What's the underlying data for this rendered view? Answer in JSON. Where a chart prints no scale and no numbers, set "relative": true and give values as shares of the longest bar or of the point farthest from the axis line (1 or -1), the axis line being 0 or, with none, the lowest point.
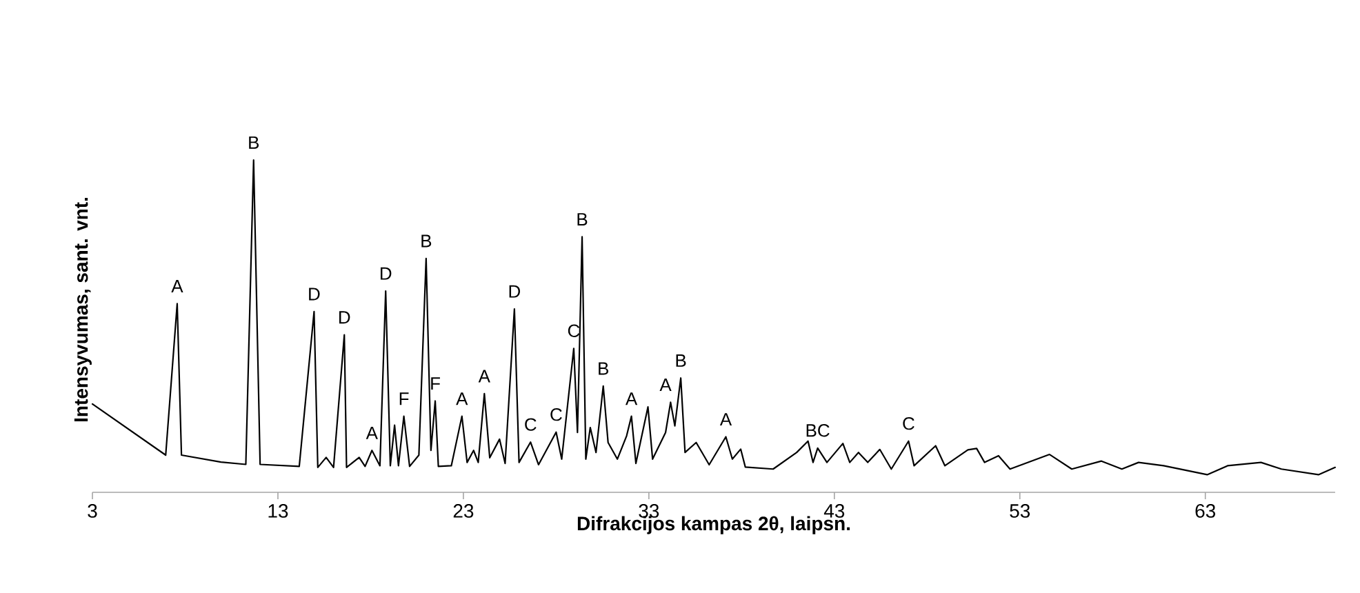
{
  "chart_data": {
    "type": "line",
    "relative": true,
    "xlabel": "Difrakcijos kampas 2θ, laipsn.",
    "ylabel": "Intensyvumas, sant. vnt.",
    "xlim": [
      3,
      70
    ],
    "xticks": [
      3,
      13,
      23,
      33,
      43,
      53,
      63
    ],
    "grid": false,
    "series": [
      {
        "color": "#000000",
        "x": [
          3,
          6.95,
          7.57,
          7.8,
          9.93,
          11.27,
          11.69,
          12.04,
          14.15,
          14.95,
          15.15,
          15.6,
          16.0,
          16.58,
          16.7,
          17.38,
          17.7,
          18.07,
          18.5,
          18.81,
          19.06,
          19.29,
          19.5,
          19.79,
          20.1,
          20.6,
          20.99,
          21.25,
          21.48,
          21.65,
          22.35,
          22.92,
          23.2,
          23.55,
          23.8,
          24.13,
          24.42,
          24.95,
          25.25,
          25.75,
          26.0,
          26.62,
          27.05,
          28.0,
          28.3,
          28.95,
          29.15,
          29.4,
          29.6,
          29.84,
          30.15,
          30.54,
          30.8,
          31.3,
          31.8,
          32.06,
          32.3,
          32.95,
          33.2,
          33.9,
          34.17,
          34.4,
          34.72,
          34.95,
          35.55,
          36.25,
          37.15,
          37.5,
          37.95,
          38.2,
          39.7,
          40.97,
          41.58,
          41.85,
          42.1,
          42.6,
          43.46,
          43.83,
          44.3,
          44.8,
          45.45,
          46.07,
          47.0,
          47.3,
          48.46,
          48.96,
          50.2,
          50.67,
          51.1,
          51.85,
          52.47,
          54.6,
          55.8,
          57.4,
          58.5,
          59.4,
          60.75,
          63.1,
          64.2,
          66.0,
          67.1,
          69.1,
          70.0
        ],
        "values": [
          0.266,
          0.112,
          0.568,
          0.112,
          0.091,
          0.084,
          1,
          0.084,
          0.078,
          0.544,
          0.075,
          0.105,
          0.075,
          0.474,
          0.075,
          0.105,
          0.078,
          0.126,
          0.08,
          0.606,
          0.08,
          0.202,
          0.08,
          0.229,
          0.078,
          0.112,
          0.704,
          0.126,
          0.275,
          0.078,
          0.08,
          0.229,
          0.09,
          0.126,
          0.09,
          0.297,
          0.104,
          0.16,
          0.087,
          0.552,
          0.09,
          0.151,
          0.083,
          0.181,
          0.1,
          0.433,
          0.18,
          0.769,
          0.1,
          0.195,
          0.12,
          0.32,
          0.15,
          0.1,
          0.17,
          0.229,
          0.087,
          0.257,
          0.1,
          0.18,
          0.271,
          0.2,
          0.344,
          0.12,
          0.15,
          0.083,
          0.167,
          0.1,
          0.13,
          0.076,
          0.07,
          0.12,
          0.154,
          0.09,
          0.133,
          0.09,
          0.147,
          0.09,
          0.12,
          0.09,
          0.129,
          0.07,
          0.154,
          0.08,
          0.14,
          0.08,
          0.128,
          0.132,
          0.09,
          0.11,
          0.07,
          0.114,
          0.07,
          0.094,
          0.07,
          0.09,
          0.08,
          0.053,
          0.08,
          0.09,
          0.07,
          0.053,
          0.075
        ]
      }
    ],
    "annotations": [
      {
        "text": "A",
        "x": 7.57,
        "y": 0.568
      },
      {
        "text": "B",
        "x": 11.69,
        "y": 1
      },
      {
        "text": "D",
        "x": 14.95,
        "y": 0.544
      },
      {
        "text": "D",
        "x": 16.58,
        "y": 0.474
      },
      {
        "text": "A",
        "x": 18.07,
        "y": 0.126
      },
      {
        "text": "D",
        "x": 18.81,
        "y": 0.606
      },
      {
        "text": "F",
        "x": 19.79,
        "y": 0.229
      },
      {
        "text": "B",
        "x": 20.99,
        "y": 0.704
      },
      {
        "text": "F",
        "x": 21.48,
        "y": 0.275
      },
      {
        "text": "A",
        "x": 22.92,
        "y": 0.229
      },
      {
        "text": "A",
        "x": 24.13,
        "y": 0.297
      },
      {
        "text": "D",
        "x": 25.75,
        "y": 0.552
      },
      {
        "text": "C",
        "x": 26.62,
        "y": 0.151
      },
      {
        "text": "C",
        "x": 28.0,
        "y": 0.181
      },
      {
        "text": "C",
        "x": 28.95,
        "y": 0.433
      },
      {
        "text": "B",
        "x": 29.4,
        "y": 0.769
      },
      {
        "text": "B",
        "x": 30.54,
        "y": 0.32
      },
      {
        "text": "A",
        "x": 32.06,
        "y": 0.229
      },
      {
        "text": "A",
        "x": 33.9,
        "y": 0.271
      },
      {
        "text": "B",
        "x": 34.72,
        "y": 0.344
      },
      {
        "text": "A",
        "x": 37.15,
        "y": 0.167
      },
      {
        "text": "BC",
        "x": 42.1,
        "y": 0.133
      },
      {
        "text": "C",
        "x": 47.0,
        "y": 0.154
      }
    ]
  }
}
